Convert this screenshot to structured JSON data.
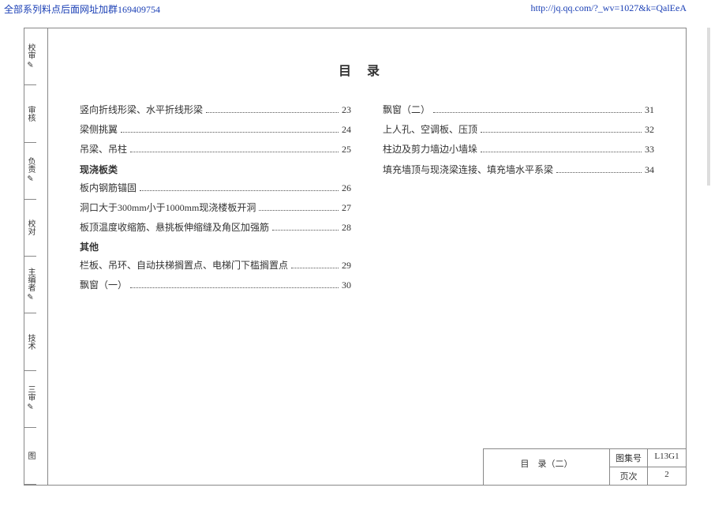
{
  "header": {
    "left": "全部系列料点后面网址加群169409754",
    "right": "http://jq.qq.com/?_wv=1027&k=QalEeA"
  },
  "sidebar": [
    {
      "label": "校审",
      "sig": "✎"
    },
    {
      "label": "审核",
      "sig": ""
    },
    {
      "label": "负责",
      "sig": "✎"
    },
    {
      "label": "校对",
      "sig": ""
    },
    {
      "label": "主编者",
      "sig": "✎"
    },
    {
      "label": "技术",
      "sig": ""
    },
    {
      "label": "三审",
      "sig": "✎"
    },
    {
      "label": "图",
      "sig": ""
    }
  ],
  "title": "目录",
  "leftCol": {
    "rows1": [
      {
        "label": "竖向折线形梁、水平折线形梁",
        "page": "23"
      },
      {
        "label": "梁侧挑翼",
        "page": "24"
      },
      {
        "label": "吊梁、吊柱",
        "page": "25"
      }
    ],
    "section1": "现浇板类",
    "rows2": [
      {
        "label": "板内钢筋锚固",
        "page": "26"
      },
      {
        "label": "洞口大于300mm小于1000mm现浇楼板开洞",
        "page": "27"
      },
      {
        "label": "板顶温度收缩筋、悬挑板伸缩缝及角区加强筋",
        "page": "28"
      }
    ],
    "section2": "其他",
    "rows3": [
      {
        "label": "栏板、吊环、自动扶梯搁置点、电梯门下槛搁置点",
        "page": "29"
      },
      {
        "label": "飘窗（一）",
        "page": "30"
      }
    ]
  },
  "rightCol": {
    "rows": [
      {
        "label": "飘窗（二）",
        "page": "31"
      },
      {
        "label": "上人孔、空调板、压顶",
        "page": "32"
      },
      {
        "label": "柱边及剪力墙边小墙垛",
        "page": "33"
      },
      {
        "label": "填充墙顶与现浇梁连接、填充墙水平系梁",
        "page": "34"
      }
    ]
  },
  "footer": {
    "title": "目　录（二）",
    "meta": [
      {
        "k": "图集号",
        "v": "L13G1"
      },
      {
        "k": "页次",
        "v": "2"
      }
    ]
  }
}
